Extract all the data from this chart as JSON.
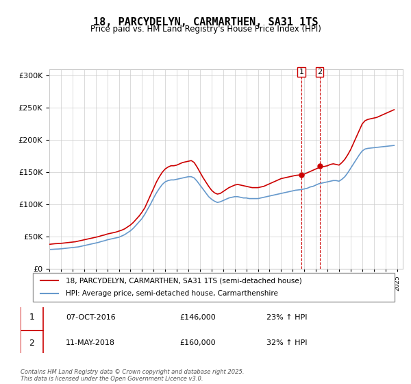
{
  "title": "18, PARCYDELYN, CARMARTHEN, SA31 1TS",
  "subtitle": "Price paid vs. HM Land Registry's House Price Index (HPI)",
  "ylabel_ticks": [
    "£0",
    "£50K",
    "£100K",
    "£150K",
    "£200K",
    "£250K",
    "£300K"
  ],
  "ytick_values": [
    0,
    50000,
    100000,
    150000,
    200000,
    250000,
    300000
  ],
  "ylim": [
    0,
    310000
  ],
  "xlim_start": 1995.0,
  "xlim_end": 2025.5,
  "red_color": "#cc0000",
  "blue_color": "#6699cc",
  "marker_color": "#cc0000",
  "vline_color": "#cc0000",
  "legend_label_red": "18, PARCYDELYN, CARMARTHEN, SA31 1TS (semi-detached house)",
  "legend_label_blue": "HPI: Average price, semi-detached house, Carmarthenshire",
  "transaction1_date": "07-OCT-2016",
  "transaction1_price": "£146,000",
  "transaction1_hpi": "23% ↑ HPI",
  "transaction2_date": "11-MAY-2018",
  "transaction2_price": "£160,000",
  "transaction2_hpi": "32% ↑ HPI",
  "footnote": "Contains HM Land Registry data © Crown copyright and database right 2025.\nThis data is licensed under the Open Government Licence v3.0.",
  "hpi_red_x": [
    1995.0,
    1995.25,
    1995.5,
    1995.75,
    1996.0,
    1996.25,
    1996.5,
    1996.75,
    1997.0,
    1997.25,
    1997.5,
    1997.75,
    1998.0,
    1998.25,
    1998.5,
    1998.75,
    1999.0,
    1999.25,
    1999.5,
    1999.75,
    2000.0,
    2000.25,
    2000.5,
    2000.75,
    2001.0,
    2001.25,
    2001.5,
    2001.75,
    2002.0,
    2002.25,
    2002.5,
    2002.75,
    2003.0,
    2003.25,
    2003.5,
    2003.75,
    2004.0,
    2004.25,
    2004.5,
    2004.75,
    2005.0,
    2005.25,
    2005.5,
    2005.75,
    2006.0,
    2006.25,
    2006.5,
    2006.75,
    2007.0,
    2007.25,
    2007.5,
    2007.75,
    2008.0,
    2008.25,
    2008.5,
    2008.75,
    2009.0,
    2009.25,
    2009.5,
    2009.75,
    2010.0,
    2010.25,
    2010.5,
    2010.75,
    2011.0,
    2011.25,
    2011.5,
    2011.75,
    2012.0,
    2012.25,
    2012.5,
    2012.75,
    2013.0,
    2013.25,
    2013.5,
    2013.75,
    2014.0,
    2014.25,
    2014.5,
    2014.75,
    2015.0,
    2015.25,
    2015.5,
    2015.75,
    2016.0,
    2016.25,
    2016.5,
    2016.75,
    2017.0,
    2017.25,
    2017.5,
    2017.75,
    2018.0,
    2018.25,
    2018.5,
    2018.75,
    2019.0,
    2019.25,
    2019.5,
    2019.75,
    2020.0,
    2020.25,
    2020.5,
    2020.75,
    2021.0,
    2021.25,
    2021.5,
    2021.75,
    2022.0,
    2022.25,
    2022.5,
    2022.75,
    2023.0,
    2023.25,
    2023.5,
    2023.75,
    2024.0,
    2024.25,
    2024.5,
    2024.75
  ],
  "hpi_red_y": [
    38000,
    38500,
    39000,
    39200,
    39500,
    40000,
    40500,
    41000,
    41500,
    42000,
    43000,
    44000,
    45000,
    46000,
    47000,
    48000,
    49000,
    50000,
    51500,
    52500,
    54000,
    55000,
    56000,
    57000,
    58500,
    60000,
    62000,
    65000,
    68000,
    72000,
    77000,
    82000,
    88000,
    95000,
    105000,
    115000,
    125000,
    135000,
    143000,
    150000,
    155000,
    158000,
    160000,
    160000,
    161000,
    163000,
    165000,
    166000,
    167000,
    168000,
    165000,
    158000,
    150000,
    142000,
    135000,
    128000,
    122000,
    118000,
    116000,
    117000,
    120000,
    123000,
    126000,
    128000,
    130000,
    131000,
    130000,
    129000,
    128000,
    127000,
    126000,
    126000,
    126000,
    127000,
    128000,
    130000,
    132000,
    134000,
    136000,
    138000,
    140000,
    141000,
    142000,
    143000,
    144000,
    145000,
    145500,
    146000,
    147000,
    149000,
    151000,
    153000,
    155000,
    157000,
    158000,
    159000,
    160000,
    162000,
    163000,
    162000,
    161000,
    165000,
    170000,
    177000,
    185000,
    195000,
    205000,
    215000,
    225000,
    230000,
    232000,
    233000,
    234000,
    235000,
    237000,
    239000,
    241000,
    243000,
    245000,
    247000
  ],
  "hpi_blue_x": [
    1995.0,
    1995.25,
    1995.5,
    1995.75,
    1996.0,
    1996.25,
    1996.5,
    1996.75,
    1997.0,
    1997.25,
    1997.5,
    1997.75,
    1998.0,
    1998.25,
    1998.5,
    1998.75,
    1999.0,
    1999.25,
    1999.5,
    1999.75,
    2000.0,
    2000.25,
    2000.5,
    2000.75,
    2001.0,
    2001.25,
    2001.5,
    2001.75,
    2002.0,
    2002.25,
    2002.5,
    2002.75,
    2003.0,
    2003.25,
    2003.5,
    2003.75,
    2004.0,
    2004.25,
    2004.5,
    2004.75,
    2005.0,
    2005.25,
    2005.5,
    2005.75,
    2006.0,
    2006.25,
    2006.5,
    2006.75,
    2007.0,
    2007.25,
    2007.5,
    2007.75,
    2008.0,
    2008.25,
    2008.5,
    2008.75,
    2009.0,
    2009.25,
    2009.5,
    2009.75,
    2010.0,
    2010.25,
    2010.5,
    2010.75,
    2011.0,
    2011.25,
    2011.5,
    2011.75,
    2012.0,
    2012.25,
    2012.5,
    2012.75,
    2013.0,
    2013.25,
    2013.5,
    2013.75,
    2014.0,
    2014.25,
    2014.5,
    2014.75,
    2015.0,
    2015.25,
    2015.5,
    2015.75,
    2016.0,
    2016.25,
    2016.5,
    2016.75,
    2017.0,
    2017.25,
    2017.5,
    2017.75,
    2018.0,
    2018.25,
    2018.5,
    2018.75,
    2019.0,
    2019.25,
    2019.5,
    2019.75,
    2020.0,
    2020.25,
    2020.5,
    2020.75,
    2021.0,
    2021.25,
    2021.5,
    2021.75,
    2022.0,
    2022.25,
    2022.5,
    2022.75,
    2023.0,
    2023.25,
    2023.5,
    2023.75,
    2024.0,
    2024.25,
    2024.5,
    2024.75
  ],
  "hpi_blue_y": [
    30000,
    30200,
    30500,
    30700,
    31000,
    31500,
    32000,
    32500,
    33000,
    33500,
    34000,
    35000,
    36000,
    37000,
    38000,
    39000,
    40000,
    41000,
    42500,
    43500,
    45000,
    46000,
    47000,
    48000,
    49000,
    51000,
    53000,
    56000,
    59000,
    63000,
    68000,
    73000,
    78000,
    85000,
    93000,
    101000,
    110000,
    118000,
    125000,
    131000,
    135000,
    137000,
    138000,
    138000,
    139000,
    140000,
    141000,
    142000,
    143000,
    143000,
    141000,
    136000,
    130000,
    124000,
    118000,
    112000,
    108000,
    105000,
    103000,
    104000,
    106000,
    108000,
    110000,
    111000,
    112000,
    112000,
    111000,
    110000,
    110000,
    109000,
    109000,
    109000,
    109000,
    110000,
    111000,
    112000,
    113000,
    114000,
    115000,
    116000,
    117000,
    118000,
    119000,
    120000,
    121000,
    122000,
    122500,
    123000,
    124000,
    125000,
    127000,
    128000,
    130000,
    132000,
    133000,
    134000,
    135000,
    136000,
    137000,
    137000,
    136000,
    139000,
    143000,
    149000,
    156000,
    163000,
    170000,
    177000,
    183000,
    186000,
    187000,
    187500,
    188000,
    188500,
    189000,
    189500,
    190000,
    190500,
    191000,
    191500
  ],
  "transaction1_x": 2016.75,
  "transaction1_y": 146000,
  "transaction2_x": 2018.33,
  "transaction2_y": 160000
}
